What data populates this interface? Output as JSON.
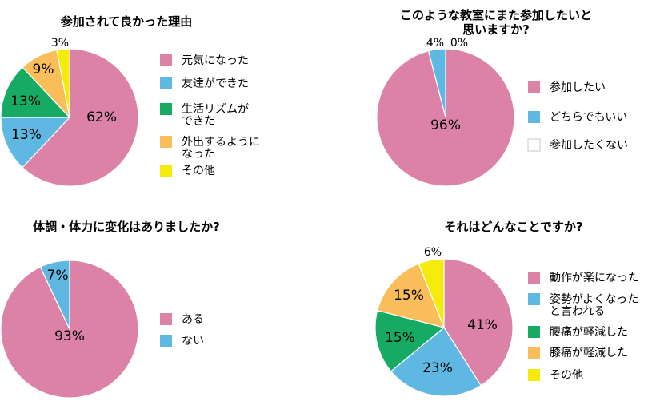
{
  "palette": {
    "pink": "#dc82a6",
    "blue": "#5fb8e2",
    "green": "#16aa62",
    "orange": "#f9bd5a",
    "yellow": "#f6ea0b",
    "white": "#ffffff",
    "stroke": "#ffffff",
    "legend_border": "#c9c9c9"
  },
  "chart_data": [
    {
      "type": "pie",
      "title": "参加されて良かった理由",
      "slices": [
        {
          "name": "元気になった",
          "value": 62,
          "label": "62%",
          "color": "#dc82a6"
        },
        {
          "name": "友達ができた",
          "value": 13,
          "label": "13%",
          "color": "#5fb8e2"
        },
        {
          "name": "生活リズムが\nできた",
          "value": 13,
          "label": "13%",
          "color": "#16aa62"
        },
        {
          "name": "外出するように\nなった",
          "value": 9,
          "label": "9%",
          "color": "#f9bd5a"
        },
        {
          "name": "その他",
          "value": 3,
          "label": "3%",
          "color": "#f6ea0b"
        }
      ]
    },
    {
      "type": "pie",
      "title": "このような教室にまた参加したいと\n思いますか?",
      "slices": [
        {
          "name": "参加したい",
          "value": 96,
          "label": "96%",
          "color": "#dc82a6"
        },
        {
          "name": "どちらでもいい",
          "value": 4,
          "label": "4%",
          "color": "#5fb8e2"
        },
        {
          "name": "参加したくない",
          "value": 0,
          "label": "0%",
          "color": "#ffffff"
        }
      ]
    },
    {
      "type": "pie",
      "title": "体調・体力に変化はありましたか?",
      "slices": [
        {
          "name": "ある",
          "value": 93,
          "label": "93%",
          "color": "#dc82a6"
        },
        {
          "name": "ない",
          "value": 7,
          "label": "7%",
          "color": "#5fb8e2"
        }
      ]
    },
    {
      "type": "pie",
      "title": "それはどんなことですか?",
      "slices": [
        {
          "name": "動作が楽になった",
          "value": 41,
          "label": "41%",
          "color": "#dc82a6"
        },
        {
          "name": "姿勢がよくなった\nと言われる",
          "value": 23,
          "label": "23%",
          "color": "#5fb8e2"
        },
        {
          "name": "腰痛が軽減した",
          "value": 15,
          "label": "15%",
          "color": "#16aa62"
        },
        {
          "name": "膝痛が軽減した",
          "value": 15,
          "label": "15%",
          "color": "#f9bd5a"
        },
        {
          "name": "その他",
          "value": 6,
          "label": "6%",
          "color": "#f6ea0b"
        }
      ]
    }
  ]
}
